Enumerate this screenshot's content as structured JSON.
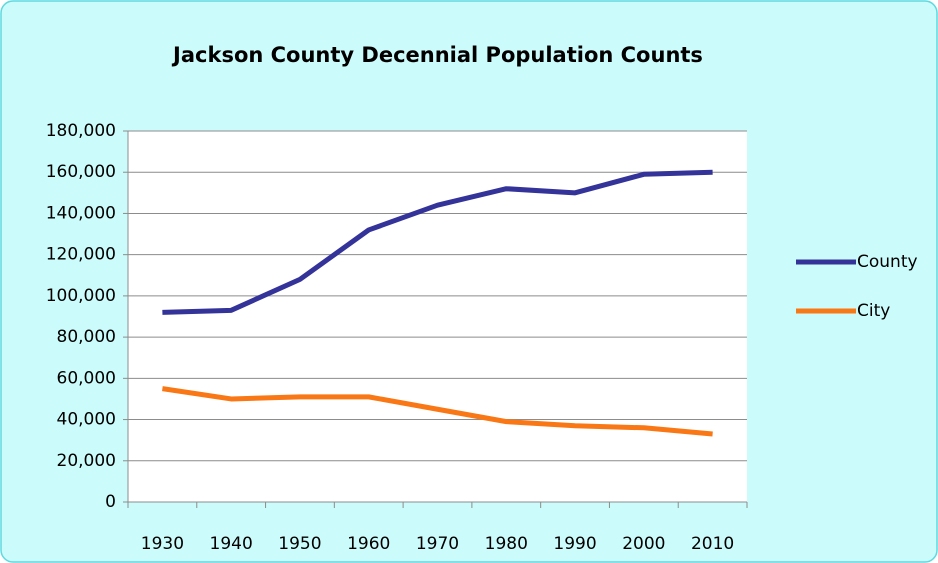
{
  "chart_data": {
    "type": "line",
    "title": "Jackson County Decennial Population Counts",
    "categories": [
      "1930",
      "1940",
      "1950",
      "1960",
      "1970",
      "1980",
      "1990",
      "2000",
      "2010"
    ],
    "series": [
      {
        "name": "County",
        "color": "#333399",
        "values": [
          92000,
          93000,
          108000,
          132000,
          144000,
          152000,
          150000,
          159000,
          160000
        ]
      },
      {
        "name": "City",
        "color": "#f97714",
        "values": [
          55000,
          50000,
          51000,
          51000,
          45000,
          39000,
          37000,
          36000,
          33000
        ]
      }
    ],
    "ylim": [
      0,
      180000
    ],
    "yticks": [
      0,
      {
        "value": 20000,
        "label": "20,000"
      },
      {
        "value": 40000,
        "label": "40,000"
      },
      {
        "value": 60000,
        "label": "60,000"
      },
      {
        "value": 80000,
        "label": "80,000"
      },
      {
        "value": 100000,
        "label": "100,000"
      },
      {
        "value": 120000,
        "label": "120,000"
      },
      {
        "value": 140000,
        "label": "140,000"
      },
      {
        "value": 160000,
        "label": "160,000"
      },
      {
        "value": 180000,
        "label": "180,000"
      }
    ],
    "grid": true,
    "legend": "right"
  }
}
